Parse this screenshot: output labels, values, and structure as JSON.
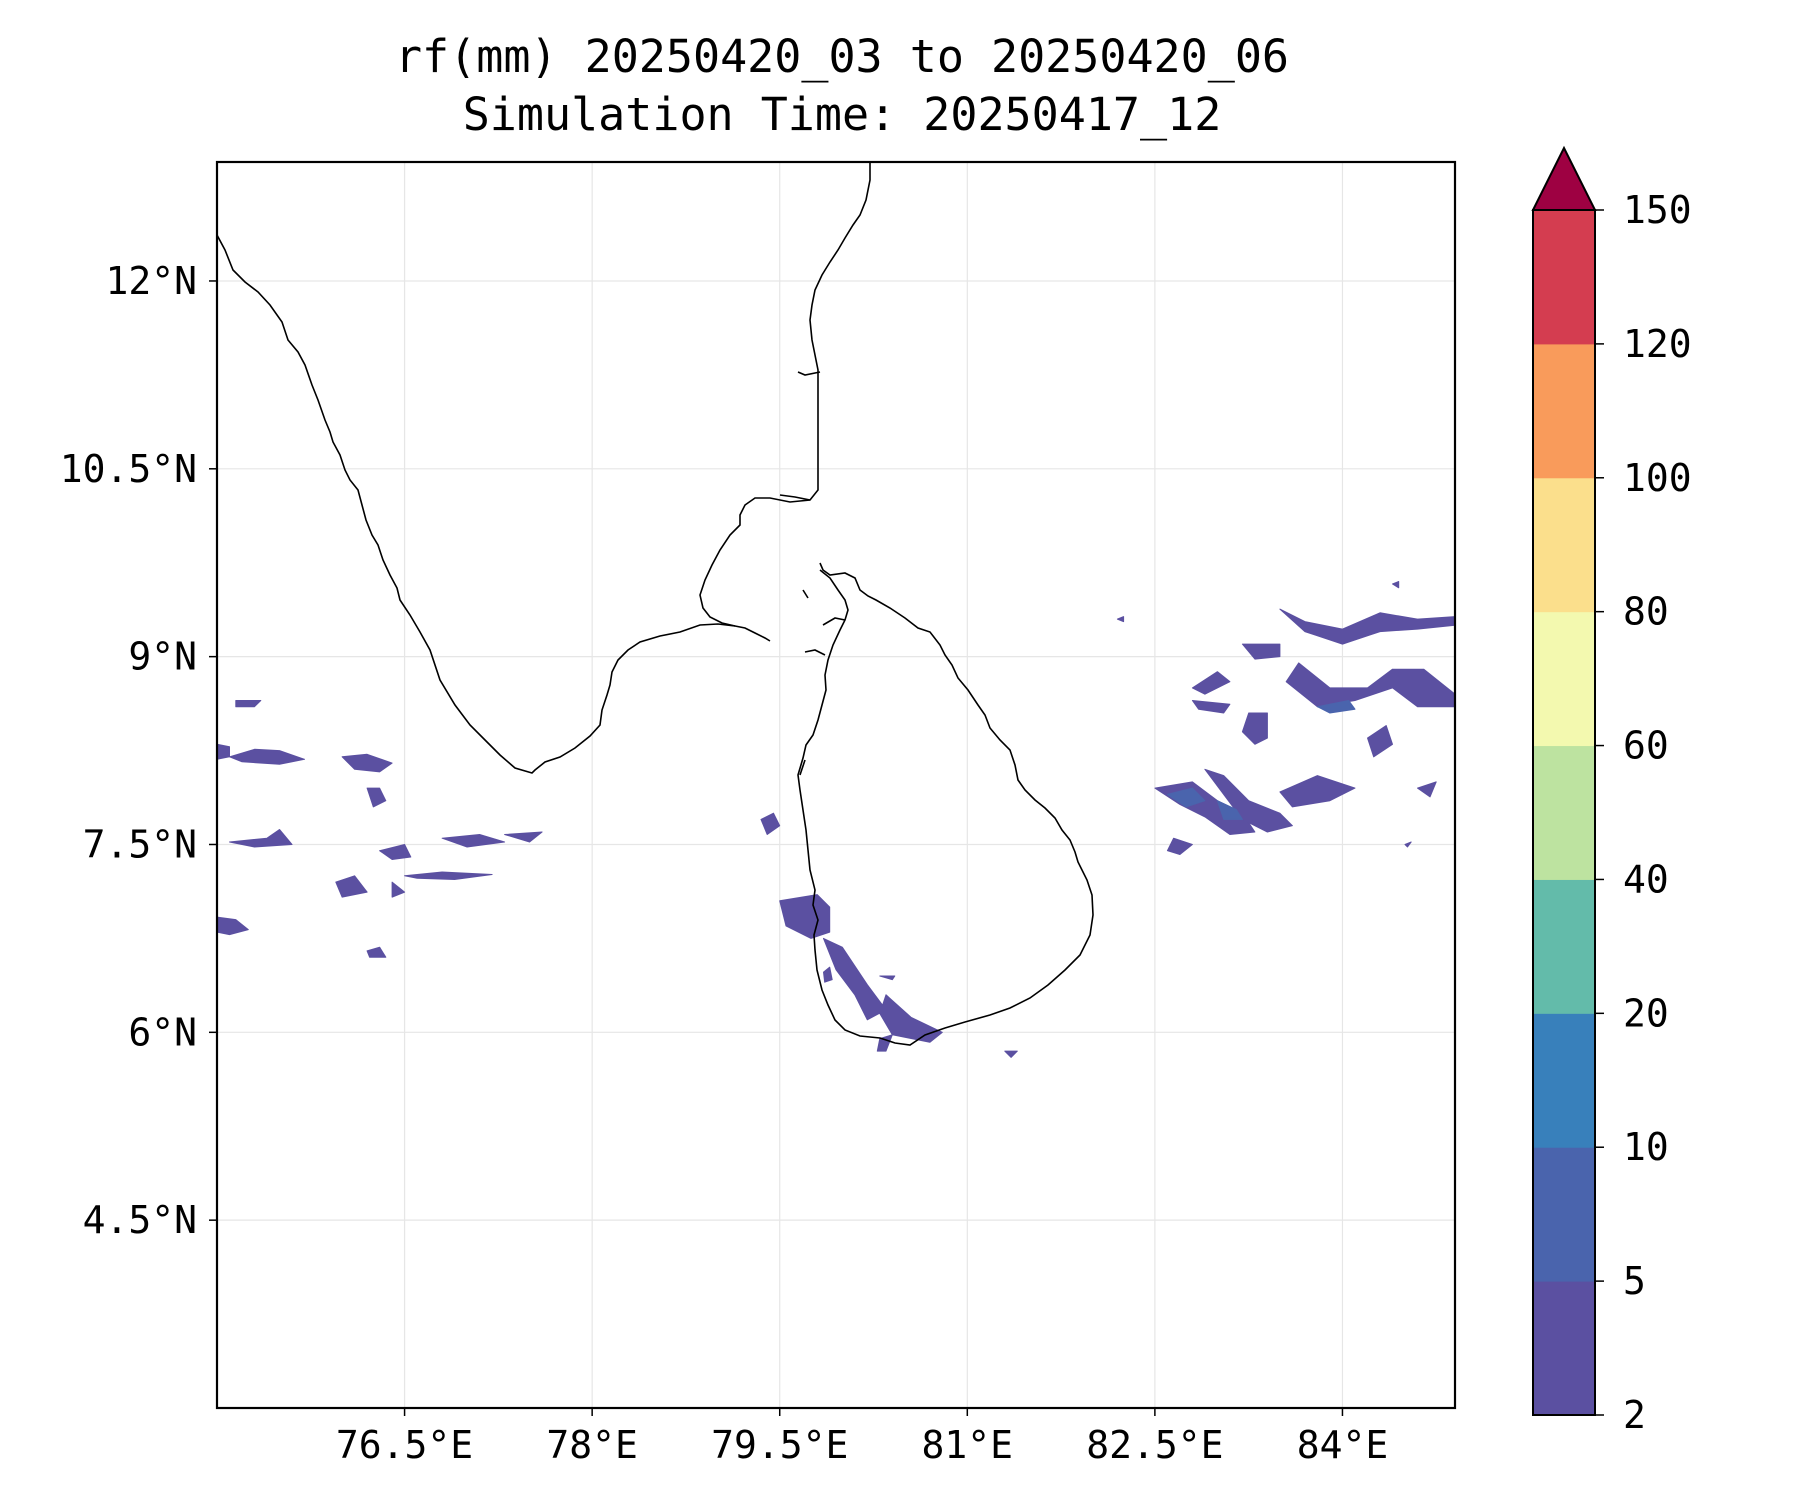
{
  "title": {
    "line1": "rf(mm) 20250420_03 to 20250420_06",
    "line2": "Simulation Time: 20250417_12"
  },
  "map": {
    "lon_range": [
      75.0,
      84.9
    ],
    "lat_range": [
      3.0,
      12.95
    ],
    "lon_ticks": [
      {
        "value": 76.5,
        "label": "76.5°E"
      },
      {
        "value": 78.0,
        "label": "78°E"
      },
      {
        "value": 79.5,
        "label": "79.5°E"
      },
      {
        "value": 81.0,
        "label": "81°E"
      },
      {
        "value": 82.5,
        "label": "82.5°E"
      },
      {
        "value": 84.0,
        "label": "84°E"
      }
    ],
    "lat_ticks": [
      {
        "value": 4.5,
        "label": "4.5°N"
      },
      {
        "value": 6.0,
        "label": "6°N"
      },
      {
        "value": 7.5,
        "label": "7.5°N"
      },
      {
        "value": 9.0,
        "label": "9°N"
      },
      {
        "value": 10.5,
        "label": "10.5°N"
      },
      {
        "value": 12.0,
        "label": "12°N"
      }
    ],
    "gridlines": true,
    "coastline_color": "#000000"
  },
  "colorbar": {
    "levels": [
      {
        "label": "2",
        "value": 2
      },
      {
        "label": "5",
        "value": 5
      },
      {
        "label": "10",
        "value": 10
      },
      {
        "label": "20",
        "value": 20
      },
      {
        "label": "40",
        "value": 40
      },
      {
        "label": "60",
        "value": 60
      },
      {
        "label": "80",
        "value": 80
      },
      {
        "label": "100",
        "value": 100
      },
      {
        "label": "120",
        "value": 120
      },
      {
        "label": "150",
        "value": 150
      }
    ],
    "colors": [
      "#5b50a1",
      "#4a64ad",
      "#3880bb",
      "#63bbaa",
      "#bde3a0",
      "#f3f9af",
      "#fbdf8c",
      "#f99b5b",
      "#d43d50"
    ],
    "extend_color": "#9e0142"
  },
  "rain_cells": [
    {
      "level": 0,
      "pts": [
        [
          75,
          8.3
        ],
        [
          75.1,
          8.28
        ],
        [
          75.1,
          8.2
        ],
        [
          75,
          8.18
        ]
      ]
    },
    {
      "level": 0,
      "pts": [
        [
          75.1,
          8.2
        ],
        [
          75.3,
          8.26
        ],
        [
          75.5,
          8.25
        ],
        [
          75.7,
          8.18
        ],
        [
          75.5,
          8.14
        ],
        [
          75.2,
          8.16
        ]
      ]
    },
    {
      "level": 0,
      "pts": [
        [
          76.0,
          8.2
        ],
        [
          76.2,
          8.22
        ],
        [
          76.4,
          8.15
        ],
        [
          76.3,
          8.08
        ],
        [
          76.1,
          8.1
        ]
      ]
    },
    {
      "level": 0,
      "pts": [
        [
          76.2,
          7.95
        ],
        [
          76.3,
          7.95
        ],
        [
          76.35,
          7.85
        ],
        [
          76.25,
          7.8
        ]
      ]
    },
    {
      "level": 0,
      "pts": [
        [
          75.1,
          7.52
        ],
        [
          75.4,
          7.55
        ],
        [
          75.5,
          7.62
        ],
        [
          75.6,
          7.5
        ],
        [
          75.3,
          7.48
        ]
      ]
    },
    {
      "level": 0,
      "pts": [
        [
          76.3,
          7.45
        ],
        [
          76.5,
          7.5
        ],
        [
          76.55,
          7.4
        ],
        [
          76.4,
          7.38
        ]
      ]
    },
    {
      "level": 0,
      "pts": [
        [
          76.8,
          7.55
        ],
        [
          77.1,
          7.58
        ],
        [
          77.3,
          7.52
        ],
        [
          77.0,
          7.48
        ]
      ]
    },
    {
      "level": 0,
      "pts": [
        [
          77.3,
          7.58
        ],
        [
          77.6,
          7.6
        ],
        [
          77.5,
          7.52
        ]
      ]
    },
    {
      "level": 0,
      "pts": [
        [
          76.5,
          7.25
        ],
        [
          76.8,
          7.28
        ],
        [
          77.2,
          7.26
        ],
        [
          76.9,
          7.22
        ],
        [
          76.6,
          7.23
        ]
      ]
    },
    {
      "level": 0,
      "pts": [
        [
          75.95,
          7.2
        ],
        [
          76.1,
          7.25
        ],
        [
          76.2,
          7.12
        ],
        [
          76.0,
          7.08
        ]
      ]
    },
    {
      "level": 0,
      "pts": [
        [
          76.4,
          7.2
        ],
        [
          76.5,
          7.12
        ],
        [
          76.4,
          7.08
        ]
      ]
    },
    {
      "level": 0,
      "pts": [
        [
          75.0,
          6.92
        ],
        [
          75.15,
          6.9
        ],
        [
          75.25,
          6.82
        ],
        [
          75.1,
          6.78
        ],
        [
          75,
          6.8
        ]
      ]
    },
    {
      "level": 0,
      "pts": [
        [
          76.2,
          6.65
        ],
        [
          76.3,
          6.68
        ],
        [
          76.35,
          6.6
        ],
        [
          76.22,
          6.6
        ]
      ]
    },
    {
      "level": 0,
      "pts": [
        [
          75.15,
          8.65
        ],
        [
          75.35,
          8.65
        ],
        [
          75.3,
          8.6
        ],
        [
          75.15,
          8.6
        ]
      ]
    },
    {
      "level": 0,
      "pts": [
        [
          79.35,
          7.7
        ],
        [
          79.45,
          7.75
        ],
        [
          79.5,
          7.65
        ],
        [
          79.4,
          7.58
        ]
      ]
    },
    {
      "level": 0,
      "pts": [
        [
          79.5,
          7.05
        ],
        [
          79.8,
          7.1
        ],
        [
          79.9,
          7.0
        ],
        [
          79.9,
          6.8
        ],
        [
          79.75,
          6.75
        ],
        [
          79.55,
          6.85
        ]
      ]
    },
    {
      "level": 0,
      "pts": [
        [
          79.85,
          6.75
        ],
        [
          80.0,
          6.68
        ],
        [
          80.2,
          6.38
        ],
        [
          80.35,
          6.18
        ],
        [
          80.2,
          6.1
        ],
        [
          80.1,
          6.3
        ],
        [
          79.95,
          6.5
        ]
      ]
    },
    {
      "level": 0,
      "pts": [
        [
          80.35,
          6.3
        ],
        [
          80.55,
          6.12
        ],
        [
          80.8,
          6.0
        ],
        [
          80.7,
          5.92
        ],
        [
          80.4,
          5.98
        ],
        [
          80.3,
          6.15
        ]
      ]
    },
    {
      "level": 0,
      "pts": [
        [
          80.3,
          5.95
        ],
        [
          80.4,
          5.98
        ],
        [
          80.35,
          5.85
        ],
        [
          80.28,
          5.85
        ]
      ]
    },
    {
      "level": 0,
      "pts": [
        [
          79.85,
          6.48
        ],
        [
          79.9,
          6.52
        ],
        [
          79.92,
          6.42
        ],
        [
          79.86,
          6.4
        ]
      ]
    },
    {
      "level": 0,
      "pts": [
        [
          80.3,
          6.45
        ],
        [
          80.42,
          6.45
        ],
        [
          80.4,
          6.42
        ]
      ]
    },
    {
      "level": 0,
      "pts": [
        [
          81.3,
          5.85
        ],
        [
          81.4,
          5.85
        ],
        [
          81.35,
          5.8
        ]
      ]
    },
    {
      "level": 0,
      "pts": [
        [
          82.5,
          7.95
        ],
        [
          82.8,
          8.0
        ],
        [
          83.0,
          7.85
        ],
        [
          83.2,
          7.75
        ],
        [
          83.3,
          7.6
        ],
        [
          83.1,
          7.58
        ],
        [
          82.9,
          7.72
        ],
        [
          82.7,
          7.82
        ]
      ]
    },
    {
      "level": 0,
      "pts": [
        [
          82.9,
          8.1
        ],
        [
          83.05,
          8.05
        ],
        [
          83.25,
          7.85
        ],
        [
          83.5,
          7.75
        ],
        [
          83.6,
          7.65
        ],
        [
          83.4,
          7.6
        ],
        [
          83.2,
          7.7
        ]
      ]
    },
    {
      "level": 0,
      "pts": [
        [
          83.5,
          7.92
        ],
        [
          83.8,
          8.05
        ],
        [
          84.1,
          7.95
        ],
        [
          83.9,
          7.85
        ],
        [
          83.6,
          7.8
        ]
      ]
    },
    {
      "level": 0,
      "pts": [
        [
          82.65,
          7.55
        ],
        [
          82.8,
          7.5
        ],
        [
          82.7,
          7.42
        ],
        [
          82.6,
          7.45
        ]
      ]
    },
    {
      "level": 0,
      "pts": [
        [
          84.6,
          7.95
        ],
        [
          84.75,
          8.0
        ],
        [
          84.7,
          7.88
        ]
      ]
    },
    {
      "level": 0,
      "pts": [
        [
          84.5,
          7.5
        ],
        [
          84.55,
          7.52
        ],
        [
          84.52,
          7.48
        ]
      ]
    },
    {
      "level": 0,
      "pts": [
        [
          83.25,
          8.55
        ],
        [
          83.4,
          8.55
        ],
        [
          83.4,
          8.35
        ],
        [
          83.3,
          8.3
        ],
        [
          83.2,
          8.4
        ]
      ]
    },
    {
      "level": 0,
      "pts": [
        [
          83.55,
          8.8
        ],
        [
          83.8,
          8.6
        ],
        [
          84.1,
          8.65
        ],
        [
          84.4,
          8.75
        ],
        [
          84.6,
          8.6
        ],
        [
          84.9,
          8.6
        ],
        [
          84.9,
          8.7
        ],
        [
          84.65,
          8.9
        ],
        [
          84.4,
          8.9
        ],
        [
          84.2,
          8.75
        ],
        [
          83.9,
          8.75
        ],
        [
          83.65,
          8.95
        ]
      ]
    },
    {
      "level": 0,
      "pts": [
        [
          84.2,
          8.35
        ],
        [
          84.35,
          8.45
        ],
        [
          84.4,
          8.3
        ],
        [
          84.25,
          8.2
        ]
      ]
    },
    {
      "level": 0,
      "pts": [
        [
          83.2,
          9.1
        ],
        [
          83.5,
          9.1
        ],
        [
          83.5,
          9.0
        ],
        [
          83.3,
          8.98
        ]
      ]
    },
    {
      "level": 0,
      "pts": [
        [
          82.8,
          8.75
        ],
        [
          83.0,
          8.88
        ],
        [
          83.1,
          8.8
        ],
        [
          82.9,
          8.7
        ]
      ]
    },
    {
      "level": 0,
      "pts": [
        [
          83.5,
          9.38
        ],
        [
          83.7,
          9.28
        ],
        [
          84.0,
          9.22
        ],
        [
          84.3,
          9.35
        ],
        [
          84.6,
          9.3
        ],
        [
          84.9,
          9.32
        ],
        [
          84.9,
          9.25
        ],
        [
          84.6,
          9.22
        ],
        [
          84.3,
          9.2
        ],
        [
          84.0,
          9.1
        ],
        [
          83.7,
          9.2
        ]
      ]
    },
    {
      "level": 0,
      "pts": [
        [
          82.8,
          8.65
        ],
        [
          83.1,
          8.62
        ],
        [
          83.05,
          8.55
        ],
        [
          82.85,
          8.58
        ]
      ]
    },
    {
      "level": 0,
      "pts": [
        [
          84.4,
          9.58
        ],
        [
          84.45,
          9.6
        ],
        [
          84.45,
          9.55
        ]
      ]
    },
    {
      "level": 0,
      "pts": [
        [
          82.2,
          9.3
        ],
        [
          82.25,
          9.32
        ],
        [
          82.25,
          9.28
        ]
      ]
    },
    {
      "level": 1,
      "pts": [
        [
          82.6,
          7.9
        ],
        [
          82.8,
          7.95
        ],
        [
          82.9,
          7.85
        ],
        [
          82.75,
          7.8
        ]
      ]
    },
    {
      "level": 1,
      "pts": [
        [
          83.0,
          7.85
        ],
        [
          83.15,
          7.78
        ],
        [
          83.2,
          7.7
        ],
        [
          83.05,
          7.7
        ]
      ]
    },
    {
      "level": 1,
      "pts": [
        [
          83.8,
          8.6
        ],
        [
          84.05,
          8.65
        ],
        [
          84.1,
          8.58
        ],
        [
          83.9,
          8.55
        ]
      ]
    }
  ],
  "colorbar_extend_label": ""
}
